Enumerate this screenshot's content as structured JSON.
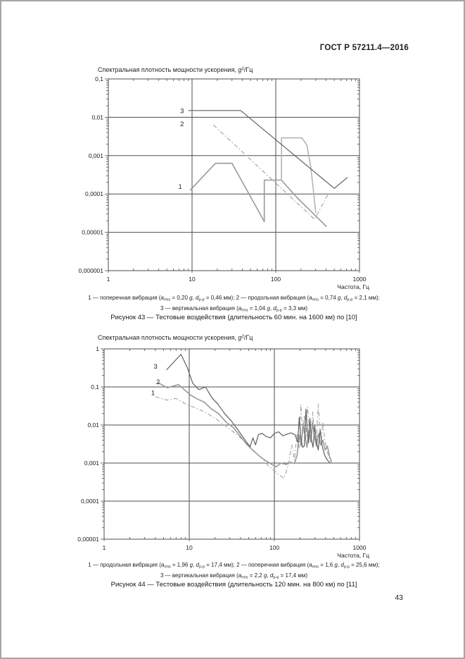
{
  "header": {
    "standard_code": "ГОСТ Р 57211.4—2016"
  },
  "page_number": "43",
  "figures": [
    {
      "id": "figure43",
      "title_segments": [
        {
          "t": "Спектральная плотность мощности ускорения, "
        },
        {
          "t": "g",
          "it": 1
        },
        {
          "t": "2",
          "sp": 1
        },
        {
          "t": "/Гц"
        }
      ],
      "caption_segments_line1": [
        {
          "t": "1 — поперечная вибрация ("
        },
        {
          "t": "a",
          "it": 1
        },
        {
          "t": "rms",
          "sb": 1
        },
        {
          "t": " = 0,20 "
        },
        {
          "t": "g",
          "it": 1
        },
        {
          "t": ", "
        },
        {
          "t": "d",
          "it": 1
        },
        {
          "t": "p-p",
          "sb": 1
        },
        {
          "t": " = 0,46 мм); 2 — продольная вибрация ("
        },
        {
          "t": "a",
          "it": 1
        },
        {
          "t": "rms",
          "sb": 1
        },
        {
          "t": " = 0,74 "
        },
        {
          "t": "g",
          "it": 1
        },
        {
          "t": ", "
        },
        {
          "t": "d",
          "it": 1
        },
        {
          "t": "p-p",
          "sb": 1
        },
        {
          "t": " = 2,1 мм);"
        }
      ],
      "caption_segments_line2": [
        {
          "t": "3 — вертикальная вибрация ("
        },
        {
          "t": "a",
          "it": 1
        },
        {
          "t": "rms",
          "sb": 1
        },
        {
          "t": " = 1,04 "
        },
        {
          "t": "g",
          "it": 1
        },
        {
          "t": ", "
        },
        {
          "t": "d",
          "it": 1
        },
        {
          "t": "p-p",
          "sb": 1
        },
        {
          "t": " = 3,3 мм)"
        }
      ],
      "figure_caption": "Рисунок 43 — Тестовые воздействия (длительность 60 мин. на 1600 км) по [10]"
    },
    {
      "id": "figure44",
      "title_segments": [
        {
          "t": "Спектральная плотность мощности ускорения, "
        },
        {
          "t": "g",
          "it": 1
        },
        {
          "t": "2",
          "sp": 1
        },
        {
          "t": "/Гц"
        }
      ],
      "caption_segments_line1": [
        {
          "t": "1 — продольная вибрация ("
        },
        {
          "t": "a",
          "it": 1
        },
        {
          "t": "rms",
          "sb": 1
        },
        {
          "t": " = 1,96 "
        },
        {
          "t": "g",
          "it": 1
        },
        {
          "t": ", "
        },
        {
          "t": "d",
          "it": 1
        },
        {
          "t": "p-p",
          "sb": 1
        },
        {
          "t": " = 17,4 мм); 2 — поперечная вибрация ("
        },
        {
          "t": "a",
          "it": 1
        },
        {
          "t": "rms",
          "sb": 1
        },
        {
          "t": " = 1,6 "
        },
        {
          "t": "g",
          "it": 1
        },
        {
          "t": ", "
        },
        {
          "t": "d",
          "it": 1
        },
        {
          "t": "p-p",
          "sb": 1
        },
        {
          "t": " = 25,6 мм);"
        }
      ],
      "caption_segments_line2": [
        {
          "t": "3 — вертикальная вибрация ("
        },
        {
          "t": "a",
          "it": 1
        },
        {
          "t": "rms",
          "sb": 1
        },
        {
          "t": " = 2,2 "
        },
        {
          "t": "g",
          "it": 1
        },
        {
          "t": ", "
        },
        {
          "t": "d",
          "it": 1
        },
        {
          "t": "p-p",
          "sb": 1
        },
        {
          "t": " = 17,4 мм)"
        }
      ],
      "figure_caption": "Рисунок 44 — Тестовые воздействия (длительность 120 мин. на 800 км) по [11]"
    }
  ],
  "chart_data": [
    {
      "type": "line",
      "figure": "Рисунок 43",
      "title": "Спектральная плотность мощности ускорения, g²/Гц",
      "xlabel": "Частота, Гц",
      "ylabel": "Спектральная плотность мощности ускорения, g²/Гц",
      "log_x": true,
      "log_y": true,
      "grid": true,
      "x_range": [
        1,
        1000
      ],
      "y_range": [
        1e-06,
        0.1
      ],
      "x_ticks": [
        {
          "v": 1,
          "label": "1"
        },
        {
          "v": 10,
          "label": "10"
        },
        {
          "v": 100,
          "label": "100"
        },
        {
          "v": 1000,
          "label": "1000"
        }
      ],
      "y_ticks": [
        {
          "v": 0.1,
          "label": "0,1"
        },
        {
          "v": 0.01,
          "label": "0,01"
        },
        {
          "v": 0.001,
          "label": "0,001"
        },
        {
          "v": 0.0001,
          "label": "0,0001"
        },
        {
          "v": 1e-05,
          "label": "0,00001"
        },
        {
          "v": 1e-06,
          "label": "0,000001"
        }
      ],
      "series": [
        {
          "label": "1",
          "name": "поперечная вибрация",
          "a_rms": "0,20 g",
          "d_pp": "0,46 мм",
          "style": "gray",
          "label_at": [
            7.9,
            0.000155
          ],
          "points": [
            [
              9.5,
              0.000125
            ],
            [
              19,
              0.00063
            ],
            [
              30,
              0.00063
            ],
            [
              73,
              1.9e-05
            ],
            [
              73,
              0.00023
            ],
            [
              117,
              0.00023
            ],
            [
              180,
              8e-05
            ],
            [
              405,
              1.4e-05
            ]
          ]
        },
        {
          "label": "2",
          "name": "продольная вибрация",
          "a_rms": "0,74 g",
          "d_pp": "2,1 мм",
          "style": "dashdot",
          "label_at": [
            8.3,
            0.0066
          ],
          "points": [
            [
              18,
              0.0063
            ],
            [
              290,
              2.2e-05
            ],
            [
              430,
              0.000105
            ]
          ]
        },
        {
          "label": "",
          "name": "",
          "style": "gray2",
          "label_at": [
            0,
            0
          ],
          "points": [
            [
              117,
              0.00024
            ],
            [
              117,
              0.0029
            ],
            [
              205,
              0.0029
            ],
            [
              235,
              0.0019
            ],
            [
              262,
              0.0005
            ],
            [
              283,
              0.00011
            ],
            [
              300,
              3.2e-05
            ]
          ]
        },
        {
          "label": "3",
          "name": "вертикальная вибрация",
          "a_rms": "1,04 g",
          "d_pp": "3,3 мм",
          "style": "dark",
          "label_at": [
            8.3,
            0.0145
          ],
          "points": [
            [
              9,
              0.015
            ],
            [
              38,
              0.015
            ],
            [
              500,
              0.00014
            ],
            [
              720,
              0.00027
            ]
          ]
        }
      ]
    },
    {
      "type": "line",
      "figure": "Рисунок 44",
      "title": "Спектральная плотность мощности ускорения, g²/Гц",
      "xlabel": "Частота, Гц",
      "ylabel": "Спектральная плотность мощности ускорения, g²/Гц",
      "log_x": true,
      "log_y": true,
      "grid": true,
      "x_range": [
        1,
        1000
      ],
      "y_range": [
        1e-05,
        1
      ],
      "x_ticks": [
        {
          "v": 1,
          "label": "1"
        },
        {
          "v": 10,
          "label": "10"
        },
        {
          "v": 100,
          "label": "100"
        },
        {
          "v": 1000,
          "label": "1000"
        }
      ],
      "y_ticks": [
        {
          "v": 1,
          "label": "1"
        },
        {
          "v": 0.1,
          "label": "0,1"
        },
        {
          "v": 0.01,
          "label": "0,01"
        },
        {
          "v": 0.001,
          "label": "0,001"
        },
        {
          "v": 0.0001,
          "label": "0,0001"
        },
        {
          "v": 1e-05,
          "label": "0,00001"
        }
      ],
      "series": [
        {
          "label": "1",
          "name": "продольная вибрация",
          "a_rms": "1,96 g",
          "d_pp": "17,4 мм",
          "style": "dashdot",
          "label_at": [
            4.1,
            0.069
          ],
          "points": [
            [
              4.0,
              0.055
            ],
            [
              5.5,
              0.045
            ],
            [
              7,
              0.05
            ],
            [
              9,
              0.036
            ],
            [
              11,
              0.03
            ],
            [
              14,
              0.024
            ],
            [
              17,
              0.019
            ],
            [
              21,
              0.014
            ],
            [
              26,
              0.01
            ],
            [
              32,
              0.007
            ],
            [
              40,
              0.0046
            ],
            [
              50,
              0.0029
            ],
            [
              60,
              0.0019
            ],
            [
              72,
              0.0013
            ],
            [
              85,
              0.00085
            ],
            [
              100,
              0.00062
            ],
            [
              115,
              0.00048
            ],
            [
              130,
              0.0004
            ],
            [
              145,
              0.00085
            ],
            [
              160,
              0.003
            ],
            [
              172,
              0.0012
            ],
            [
              185,
              0.006
            ],
            [
              195,
              0.0025
            ],
            [
              205,
              0.035
            ],
            [
              215,
              0.0055
            ],
            [
              225,
              0.018
            ],
            [
              235,
              0.0045
            ],
            [
              245,
              0.03
            ],
            [
              258,
              0.008
            ],
            [
              270,
              0.0038
            ],
            [
              282,
              0.022
            ],
            [
              295,
              0.006
            ],
            [
              310,
              0.003
            ],
            [
              328,
              0.036
            ],
            [
              342,
              0.0085
            ],
            [
              355,
              0.004
            ],
            [
              372,
              0.012
            ],
            [
              390,
              0.0042
            ],
            [
              412,
              0.0022
            ],
            [
              440,
              0.0014
            ],
            [
              475,
              0.00095
            ]
          ]
        },
        {
          "label": "2",
          "name": "поперечная вибрация",
          "a_rms": "1,6 g",
          "d_pp": "25,6 мм",
          "style": "gray",
          "label_at": [
            4.7,
            0.135
          ],
          "points": [
            [
              4.3,
              0.13
            ],
            [
              5.5,
              0.095
            ],
            [
              7.5,
              0.115
            ],
            [
              9,
              0.08
            ],
            [
              10.5,
              0.06
            ],
            [
              12.5,
              0.048
            ],
            [
              15,
              0.04
            ],
            [
              18,
              0.027
            ],
            [
              22,
              0.02
            ],
            [
              27,
              0.012
            ],
            [
              33,
              0.0085
            ],
            [
              40,
              0.005
            ],
            [
              48,
              0.003
            ],
            [
              58,
              0.002
            ],
            [
              70,
              0.0014
            ],
            [
              82,
              0.0011
            ],
            [
              95,
              0.0009
            ],
            [
              105,
              0.0008
            ],
            [
              120,
              0.001
            ],
            [
              138,
              0.00092
            ],
            [
              155,
              0.00105
            ],
            [
              172,
              0.00098
            ],
            [
              185,
              0.0016
            ],
            [
              196,
              0.0055
            ],
            [
              206,
              0.0028
            ],
            [
              218,
              0.0105
            ],
            [
              230,
              0.0048
            ],
            [
              242,
              0.0026
            ],
            [
              255,
              0.0075
            ],
            [
              268,
              0.0036
            ],
            [
              282,
              0.0115
            ],
            [
              296,
              0.005
            ],
            [
              312,
              0.0028
            ],
            [
              330,
              0.006
            ],
            [
              350,
              0.003
            ],
            [
              372,
              0.004
            ],
            [
              395,
              0.0022
            ],
            [
              420,
              0.0028
            ],
            [
              448,
              0.0014
            ],
            [
              470,
              0.0011
            ]
          ]
        },
        {
          "label": "3",
          "name": "вертикальная вибрация",
          "a_rms": "2,2 g",
          "d_pp": "17,4 мм",
          "style": "dark",
          "label_at": [
            4.4,
            0.345
          ],
          "points": [
            [
              5.4,
              0.28
            ],
            [
              8,
              0.72
            ],
            [
              9.5,
              0.32
            ],
            [
              11,
              0.125
            ],
            [
              13,
              0.085
            ],
            [
              15.5,
              0.1
            ],
            [
              18.5,
              0.052
            ],
            [
              22,
              0.034
            ],
            [
              26,
              0.02
            ],
            [
              31,
              0.013
            ],
            [
              38,
              0.007
            ],
            [
              46,
              0.0038
            ],
            [
              52,
              0.0027
            ],
            [
              56,
              0.0046
            ],
            [
              60,
              0.003
            ],
            [
              65,
              0.0056
            ],
            [
              72,
              0.006
            ],
            [
              80,
              0.005
            ],
            [
              90,
              0.0046
            ],
            [
              100,
              0.006
            ],
            [
              112,
              0.0066
            ],
            [
              126,
              0.0052
            ],
            [
              142,
              0.0058
            ],
            [
              158,
              0.0062
            ],
            [
              175,
              0.0055
            ],
            [
              188,
              0.0035
            ],
            [
              196,
              0.016
            ],
            [
              205,
              0.0045
            ],
            [
              215,
              0.0026
            ],
            [
              225,
              0.0028
            ],
            [
              235,
              0.026
            ],
            [
              245,
              0.006
            ],
            [
              252,
              0.0034
            ],
            [
              262,
              0.015
            ],
            [
              272,
              0.0042
            ],
            [
              285,
              0.0026
            ],
            [
              298,
              0.0095
            ],
            [
              312,
              0.0036
            ],
            [
              328,
              0.0022
            ],
            [
              345,
              0.0075
            ],
            [
              365,
              0.0028
            ],
            [
              390,
              0.0016
            ],
            [
              420,
              0.0012
            ],
            [
              450,
              0.001
            ]
          ]
        }
      ]
    }
  ]
}
